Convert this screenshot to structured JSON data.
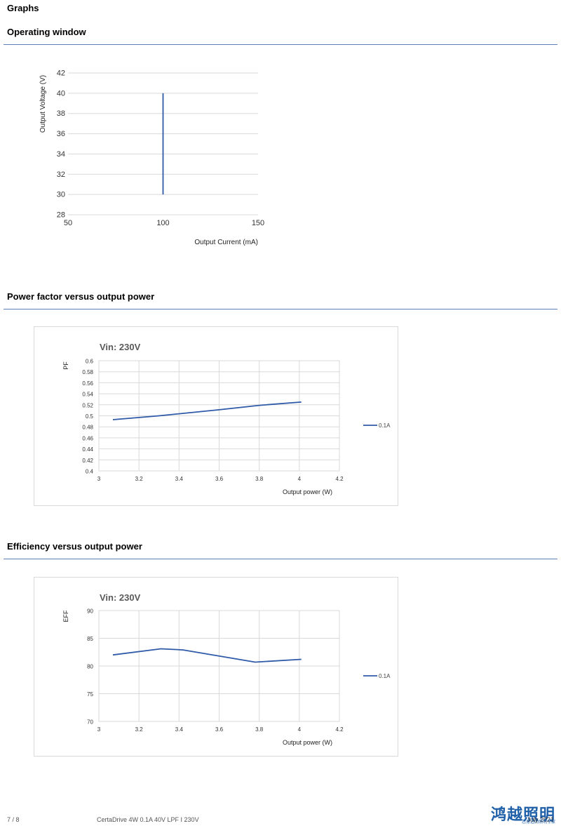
{
  "page_title": "Graphs",
  "sections": {
    "operating": "Operating window",
    "pf": "Power factor versus output power",
    "eff": "Efficiency versus output power"
  },
  "footer": {
    "page": "7 / 8",
    "product": "CertaDrive 4W 0.1A 40V LPF I 230V",
    "date": "July 2021",
    "logo": "鸿越照明",
    "logo_sub": "您身边的照明专家"
  },
  "colors": {
    "line": "#2f5aa8",
    "rule": "#5b7fb6",
    "grid": "#d9d9d9"
  },
  "chart_data": [
    {
      "type": "line",
      "xlabel": "Output Current (mA)",
      "ylabel": "Output Voltage (V)",
      "xlim": [
        50,
        150
      ],
      "ylim": [
        28,
        42
      ],
      "xticks": [
        50,
        100,
        150
      ],
      "yticks": [
        28,
        30,
        32,
        34,
        36,
        38,
        40,
        42
      ],
      "series": [
        {
          "x": [
            100,
            100
          ],
          "y": [
            30,
            40
          ]
        }
      ]
    },
    {
      "type": "line",
      "title": "Vin: 230V",
      "xlabel": "Output power (W)",
      "ylabel": "PF",
      "xlim": [
        3,
        4.2
      ],
      "ylim": [
        0.4,
        0.6
      ],
      "xticks": [
        "3",
        "3.2",
        "3.4",
        "3.6",
        "3.8",
        "4",
        "4.2"
      ],
      "yticks": [
        "0.4",
        "0.42",
        "0.44",
        "0.46",
        "0.48",
        "0.5",
        "0.52",
        "0.54",
        "0.56",
        "0.58",
        "0.6"
      ],
      "legend": "right",
      "series": [
        {
          "name": "0.1A",
          "x": [
            3.07,
            3.3,
            3.6,
            3.8,
            4.01
          ],
          "y": [
            0.493,
            0.5,
            0.511,
            0.519,
            0.525
          ]
        }
      ]
    },
    {
      "type": "line",
      "title": "Vin: 230V",
      "xlabel": "Output power (W)",
      "ylabel": "EFF",
      "xlim": [
        3,
        4.2
      ],
      "ylim": [
        70,
        90
      ],
      "xticks": [
        "3",
        "3.2",
        "3.4",
        "3.6",
        "3.8",
        "4",
        "4.2"
      ],
      "yticks": [
        "70",
        "75",
        "80",
        "85",
        "90"
      ],
      "legend": "right",
      "series": [
        {
          "name": "0.1A",
          "x": [
            3.07,
            3.31,
            3.42,
            3.78,
            4.01
          ],
          "y": [
            82.0,
            83.1,
            82.9,
            80.7,
            81.2
          ]
        }
      ]
    }
  ]
}
